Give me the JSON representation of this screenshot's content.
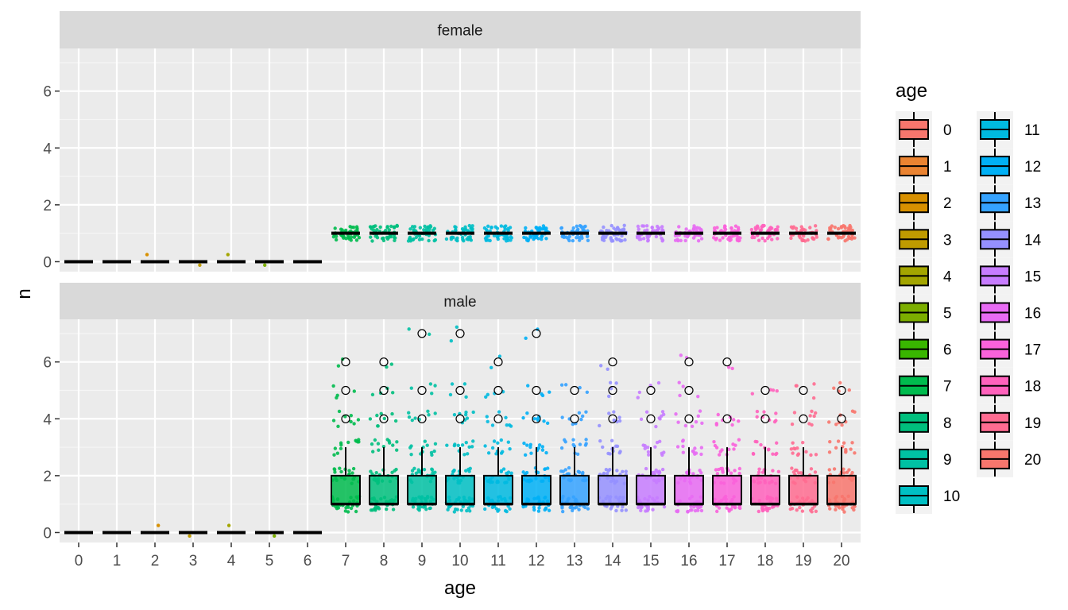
{
  "chart_data": {
    "type": "boxplot",
    "xlabel": "age",
    "ylabel": "n",
    "categories": [
      "0",
      "1",
      "2",
      "3",
      "4",
      "5",
      "6",
      "7",
      "8",
      "9",
      "10",
      "11",
      "12",
      "13",
      "14",
      "15",
      "16",
      "17",
      "18",
      "19",
      "20"
    ],
    "y_ticks": [
      0,
      2,
      4,
      6
    ],
    "ylim": [
      -0.35,
      7.5
    ],
    "grid": true,
    "legend": {
      "title": "age",
      "placement": "right",
      "entries": [
        "0",
        "1",
        "2",
        "3",
        "4",
        "5",
        "6",
        "7",
        "8",
        "9",
        "10",
        "11",
        "12",
        "13",
        "14",
        "15",
        "16",
        "17",
        "18",
        "19",
        "20"
      ]
    },
    "colors": [
      "#F8766D",
      "#EA8331",
      "#D89000",
      "#C09B00",
      "#A3A500",
      "#7CAE00",
      "#39B600",
      "#00BB4E",
      "#00BF7D",
      "#00C1A3",
      "#00BFC4",
      "#00BAE0",
      "#00B0F6",
      "#35A2FF",
      "#9590FF",
      "#C77CFF",
      "#E76BF3",
      "#FA62DB",
      "#FF62BC",
      "#FF6C91",
      "#F8766D"
    ],
    "panels": [
      {
        "label": "female",
        "boxes": [
          {
            "age": "0",
            "q1": 0,
            "median": 0,
            "q3": 0,
            "whisker_low": 0,
            "whisker_high": 0,
            "outliers": []
          },
          {
            "age": "1",
            "q1": 0,
            "median": 0,
            "q3": 0,
            "whisker_low": 0,
            "whisker_high": 0,
            "outliers": []
          },
          {
            "age": "2",
            "q1": 0,
            "median": 0,
            "q3": 0,
            "whisker_low": 0,
            "whisker_high": 0,
            "outliers": []
          },
          {
            "age": "3",
            "q1": 0,
            "median": 0,
            "q3": 0,
            "whisker_low": 0,
            "whisker_high": 0,
            "outliers": []
          },
          {
            "age": "4",
            "q1": 0,
            "median": 0,
            "q3": 0,
            "whisker_low": 0,
            "whisker_high": 0,
            "outliers": []
          },
          {
            "age": "5",
            "q1": 0,
            "median": 0,
            "q3": 0,
            "whisker_low": 0,
            "whisker_high": 0,
            "outliers": []
          },
          {
            "age": "6",
            "q1": 0,
            "median": 0,
            "q3": 0,
            "whisker_low": 0,
            "whisker_high": 0,
            "outliers": []
          },
          {
            "age": "7",
            "q1": 1,
            "median": 1,
            "q3": 1,
            "whisker_low": 1,
            "whisker_high": 1,
            "outliers": []
          },
          {
            "age": "8",
            "q1": 1,
            "median": 1,
            "q3": 1,
            "whisker_low": 1,
            "whisker_high": 1,
            "outliers": []
          },
          {
            "age": "9",
            "q1": 1,
            "median": 1,
            "q3": 1,
            "whisker_low": 1,
            "whisker_high": 1,
            "outliers": []
          },
          {
            "age": "10",
            "q1": 1,
            "median": 1,
            "q3": 1,
            "whisker_low": 1,
            "whisker_high": 1,
            "outliers": []
          },
          {
            "age": "11",
            "q1": 1,
            "median": 1,
            "q3": 1,
            "whisker_low": 1,
            "whisker_high": 1,
            "outliers": []
          },
          {
            "age": "12",
            "q1": 1,
            "median": 1,
            "q3": 1,
            "whisker_low": 1,
            "whisker_high": 1,
            "outliers": []
          },
          {
            "age": "13",
            "q1": 1,
            "median": 1,
            "q3": 1,
            "whisker_low": 1,
            "whisker_high": 1,
            "outliers": []
          },
          {
            "age": "14",
            "q1": 1,
            "median": 1,
            "q3": 1,
            "whisker_low": 1,
            "whisker_high": 1,
            "outliers": []
          },
          {
            "age": "15",
            "q1": 1,
            "median": 1,
            "q3": 1,
            "whisker_low": 1,
            "whisker_high": 1,
            "outliers": []
          },
          {
            "age": "16",
            "q1": 1,
            "median": 1,
            "q3": 1,
            "whisker_low": 1,
            "whisker_high": 1,
            "outliers": []
          },
          {
            "age": "17",
            "q1": 1,
            "median": 1,
            "q3": 1,
            "whisker_low": 1,
            "whisker_high": 1,
            "outliers": []
          },
          {
            "age": "18",
            "q1": 1,
            "median": 1,
            "q3": 1,
            "whisker_low": 1,
            "whisker_high": 1,
            "outliers": []
          },
          {
            "age": "19",
            "q1": 1,
            "median": 1,
            "q3": 1,
            "whisker_low": 1,
            "whisker_high": 1,
            "outliers": []
          },
          {
            "age": "20",
            "q1": 1,
            "median": 1,
            "q3": 1,
            "whisker_low": 1,
            "whisker_high": 1,
            "outliers": []
          }
        ]
      },
      {
        "label": "male",
        "boxes": [
          {
            "age": "0",
            "q1": 0,
            "median": 0,
            "q3": 0,
            "whisker_low": 0,
            "whisker_high": 0,
            "outliers": []
          },
          {
            "age": "1",
            "q1": 0,
            "median": 0,
            "q3": 0,
            "whisker_low": 0,
            "whisker_high": 0,
            "outliers": []
          },
          {
            "age": "2",
            "q1": 0,
            "median": 0,
            "q3": 0,
            "whisker_low": 0,
            "whisker_high": 0,
            "outliers": []
          },
          {
            "age": "3",
            "q1": 0,
            "median": 0,
            "q3": 0,
            "whisker_low": 0,
            "whisker_high": 0,
            "outliers": []
          },
          {
            "age": "4",
            "q1": 0,
            "median": 0,
            "q3": 0,
            "whisker_low": 0,
            "whisker_high": 0,
            "outliers": []
          },
          {
            "age": "5",
            "q1": 0,
            "median": 0,
            "q3": 0,
            "whisker_low": 0,
            "whisker_high": 0,
            "outliers": []
          },
          {
            "age": "6",
            "q1": 0,
            "median": 0,
            "q3": 0,
            "whisker_low": 0,
            "whisker_high": 0,
            "outliers": []
          },
          {
            "age": "7",
            "q1": 1,
            "median": 1,
            "q3": 2,
            "whisker_low": 1,
            "whisker_high": 3,
            "outliers": [
              4,
              5,
              6
            ]
          },
          {
            "age": "8",
            "q1": 1,
            "median": 1,
            "q3": 2,
            "whisker_low": 1,
            "whisker_high": 3,
            "outliers": [
              4,
              5,
              6
            ]
          },
          {
            "age": "9",
            "q1": 1,
            "median": 1,
            "q3": 2,
            "whisker_low": 1,
            "whisker_high": 3,
            "outliers": [
              4,
              5,
              7
            ]
          },
          {
            "age": "10",
            "q1": 1,
            "median": 1,
            "q3": 2,
            "whisker_low": 1,
            "whisker_high": 3,
            "outliers": [
              4,
              5,
              7
            ]
          },
          {
            "age": "11",
            "q1": 1,
            "median": 1,
            "q3": 2,
            "whisker_low": 1,
            "whisker_high": 3,
            "outliers": [
              4,
              5,
              6
            ]
          },
          {
            "age": "12",
            "q1": 1,
            "median": 1,
            "q3": 2,
            "whisker_low": 1,
            "whisker_high": 3,
            "outliers": [
              4,
              5,
              7
            ]
          },
          {
            "age": "13",
            "q1": 1,
            "median": 1,
            "q3": 2,
            "whisker_low": 1,
            "whisker_high": 3,
            "outliers": [
              4,
              5
            ]
          },
          {
            "age": "14",
            "q1": 1,
            "median": 1,
            "q3": 2,
            "whisker_low": 1,
            "whisker_high": 3,
            "outliers": [
              4,
              5,
              6
            ]
          },
          {
            "age": "15",
            "q1": 1,
            "median": 1,
            "q3": 2,
            "whisker_low": 1,
            "whisker_high": 3,
            "outliers": [
              4,
              5
            ]
          },
          {
            "age": "16",
            "q1": 1,
            "median": 1,
            "q3": 2,
            "whisker_low": 1,
            "whisker_high": 3,
            "outliers": [
              4,
              5,
              6
            ]
          },
          {
            "age": "17",
            "q1": 1,
            "median": 1,
            "q3": 2,
            "whisker_low": 1,
            "whisker_high": 3,
            "outliers": [
              4,
              6
            ]
          },
          {
            "age": "18",
            "q1": 1,
            "median": 1,
            "q3": 2,
            "whisker_low": 1,
            "whisker_high": 3,
            "outliers": [
              4,
              5
            ]
          },
          {
            "age": "19",
            "q1": 1,
            "median": 1,
            "q3": 2,
            "whisker_low": 1,
            "whisker_high": 3,
            "outliers": [
              4,
              5
            ]
          },
          {
            "age": "20",
            "q1": 1,
            "median": 1,
            "q3": 2,
            "whisker_low": 1,
            "whisker_high": 3,
            "outliers": [
              4,
              5
            ]
          }
        ]
      }
    ]
  }
}
